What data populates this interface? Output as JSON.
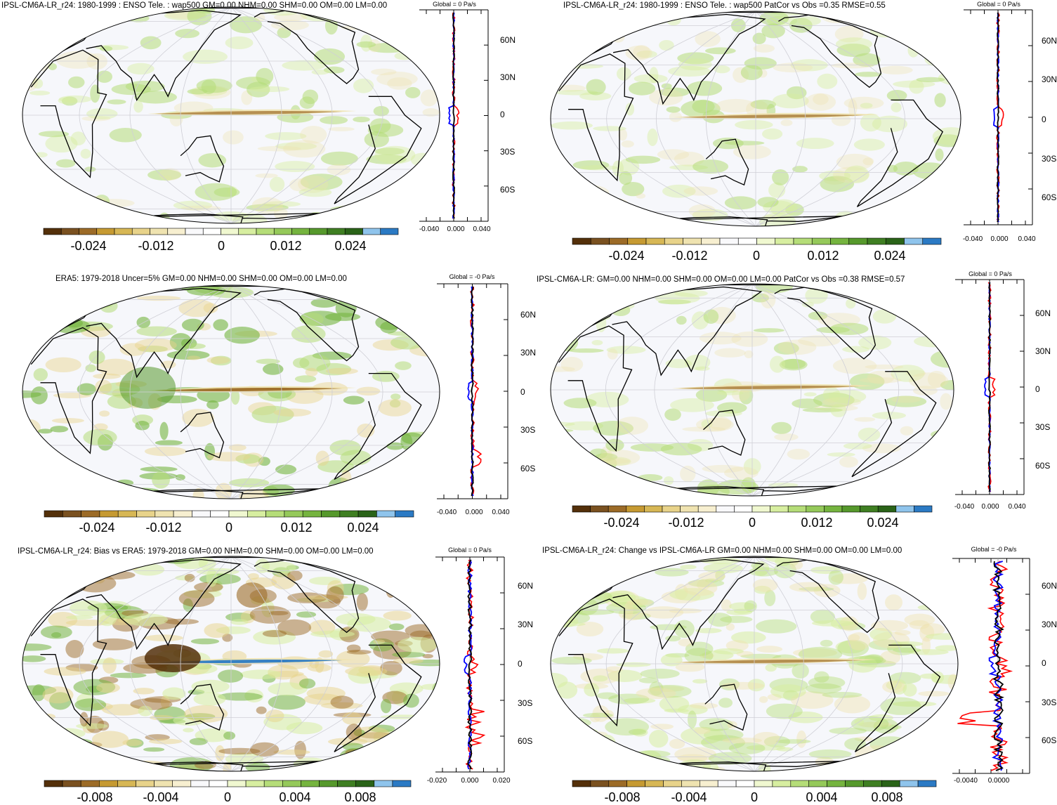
{
  "colormap": {
    "colors": [
      "#54300a",
      "#7a5120",
      "#9c6b27",
      "#c69a32",
      "#d7b755",
      "#e8d38a",
      "#efe3b0",
      "#f7efd0",
      "#f9f9fb",
      "#ffffff",
      "#f0f8d0",
      "#d7eea0",
      "#b5dd78",
      "#95c95a",
      "#75b43f",
      "#56992c",
      "#3f7f22",
      "#2a6318",
      "#8fc4ec",
      "#2b7ac4"
    ]
  },
  "panels": [
    {
      "id": "model-enso",
      "title": "IPSL-CM6A-LR_r24: 1980-1999 : ENSO Tele. : wap500 GM=0.00 NHM=0.00 SHM=0.00 OM=0.00 LM=0.00",
      "profile_title": "Global = 0 Pa/s",
      "lat_labels": [
        "60N",
        "30N",
        "0",
        "30S",
        "60S"
      ],
      "profile_xticks": [
        "-0.040",
        "0.000",
        "0.040"
      ],
      "colorbar_labels": [
        "-0.024",
        "-0.012",
        "0",
        "0.012",
        "0.024"
      ]
    },
    {
      "id": "model-enso-stats",
      "title": "IPSL-CM6A-LR_r24: 1980-1999 : ENSO Tele. : wap500 PatCor vs Obs =0.35 RMSE=0.55",
      "profile_title": "Global = 0 Pa/s",
      "lat_labels": [
        "60N",
        "30N",
        "0",
        "30S",
        "60S"
      ],
      "profile_xticks": [
        "-0.040",
        "0.000",
        "0.040"
      ],
      "colorbar_labels": [
        "-0.024",
        "-0.012",
        "0",
        "0.012",
        "0.024"
      ]
    },
    {
      "id": "era5",
      "title": "ERA5: 1979-2018 Uncer=5% GM=0.00 NHM=0.00 SHM=0.00 OM=0.00 LM=0.00",
      "profile_title": "Global = -0 Pa/s",
      "lat_labels": [
        "60N",
        "30N",
        "0",
        "30S",
        "60S"
      ],
      "profile_xticks": [
        "-0.040",
        "0.000",
        "0.040"
      ],
      "colorbar_labels": [
        "-0.024",
        "-0.012",
        "0",
        "0.012",
        "0.024"
      ]
    },
    {
      "id": "ref-model",
      "title": "IPSL-CM6A-LR: GM=0.00 NHM=0.00 SHM=0.00 OM=0.00 LM=0.00 PatCor vs Obs =0.38 RMSE=0.57",
      "profile_title": "Global = 0 Pa/s",
      "lat_labels": [
        "60N",
        "30N",
        "0",
        "30S",
        "60S"
      ],
      "profile_xticks": [
        "-0.040",
        "0.000",
        "0.040"
      ],
      "colorbar_labels": [
        "-0.024",
        "-0.012",
        "0",
        "0.012",
        "0.024"
      ]
    },
    {
      "id": "bias",
      "title": "IPSL-CM6A-LR_r24: Bias vs ERA5: 1979-2018 GM=0.00 NHM=0.00 SHM=0.00 OM=0.00 LM=0.00",
      "profile_title": "Global = 0 Pa/s",
      "lat_labels": [
        "60N",
        "30N",
        "0",
        "30S",
        "60S"
      ],
      "profile_xticks": [
        "-0.020",
        "0.000",
        "0.020"
      ],
      "colorbar_labels": [
        "-0.008",
        "-0.004",
        "0",
        "0.004",
        "0.008"
      ]
    },
    {
      "id": "change",
      "title": "IPSL-CM6A-LR_r24: Change vs IPSL-CM6A-LR GM=0.00 NHM=0.00 SHM=0.00 OM=0.00 LM=0.00",
      "profile_title": "Global = -0 Pa/s",
      "lat_labels": [
        "60N",
        "30N",
        "0",
        "30S",
        "60S"
      ],
      "profile_xticks": [
        "-0.0040",
        "0.0000"
      ],
      "colorbar_labels": [
        "-0.008",
        "-0.004",
        "0",
        "0.004",
        "0.008"
      ]
    }
  ]
}
